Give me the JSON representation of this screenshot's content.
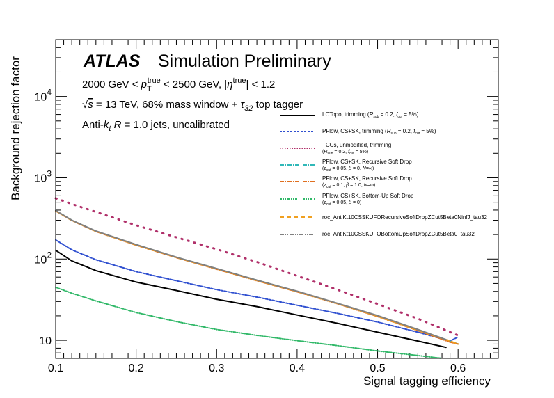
{
  "chart_data": {
    "type": "line",
    "xlabel": "Signal tagging efficiency",
    "ylabel": "Background rejection factor",
    "xlim": [
      0.1,
      0.65
    ],
    "ylim": [
      6,
      50000
    ],
    "yscale": "log",
    "grid": false,
    "legend_placement": "top-right",
    "x_ticks": [
      0.1,
      0.2,
      0.3,
      0.4,
      0.5,
      0.6
    ],
    "x_tick_labels": [
      "0.1",
      "0.2",
      "0.3",
      "0.4",
      "0.5",
      "0.6"
    ],
    "y_major_ticks": [
      10,
      100,
      1000,
      10000
    ],
    "y_tick_labels": [
      {
        "base": "10",
        "exp": ""
      },
      {
        "base": "10",
        "exp": "2"
      },
      {
        "base": "10",
        "exp": "3"
      },
      {
        "base": "10",
        "exp": "4"
      }
    ],
    "annotations": {
      "atlas": "ATLAS",
      "simulation": "Simulation Preliminary",
      "line1": "2000 GeV < p_T^true < 2500 GeV, |η^true| < 1.2",
      "line2": "√s = 13 TeV, 68% mass window + τ_32 top tagger",
      "line3": "Anti-k_t R = 1.0 jets, uncalibrated"
    },
    "series": [
      {
        "name": "LCTopo, trimming (R_sub = 0.2, f_cut = 5%)",
        "color": "#000000",
        "dash": "solid",
        "width": 2,
        "x": [
          0.1,
          0.12,
          0.15,
          0.2,
          0.25,
          0.3,
          0.35,
          0.4,
          0.45,
          0.5,
          0.55,
          0.585
        ],
        "y": [
          128,
          95,
          72,
          52,
          41,
          32,
          26,
          20.5,
          16.2,
          12.6,
          9.8,
          8.2
        ]
      },
      {
        "name": "PFlow, CS+SK, trimming (R_sub = 0.2, f_cut = 5%)",
        "color": "#3050d0",
        "dash": "3,2",
        "width": 2,
        "x": [
          0.1,
          0.12,
          0.15,
          0.2,
          0.25,
          0.3,
          0.35,
          0.4,
          0.45,
          0.5,
          0.55,
          0.59,
          0.6
        ],
        "y": [
          172,
          130,
          98,
          70,
          54,
          42,
          34,
          27,
          21.5,
          16.8,
          12.6,
          9.8,
          11
        ]
      },
      {
        "name": "TCCs, unmodified, trimming (R_sub = 0.2, f_cut = 5%)",
        "color": "#b0306a",
        "dash": "1.5,8",
        "width": 3,
        "x": [
          0.1,
          0.13,
          0.15,
          0.2,
          0.25,
          0.3,
          0.35,
          0.4,
          0.45,
          0.5,
          0.55,
          0.6
        ],
        "y": [
          560,
          440,
          380,
          260,
          185,
          132,
          92,
          62,
          42,
          28,
          18.5,
          11.5
        ]
      },
      {
        "name": "PFlow, CS+SK, Recursive Soft Drop (z_cut = 0.05, β = 0, N=∞)",
        "color": "#30b8b8",
        "dash": "6,2,1,2",
        "width": 2,
        "x": [
          0.1,
          0.12,
          0.15,
          0.2,
          0.25,
          0.3,
          0.35,
          0.4,
          0.45,
          0.5,
          0.55,
          0.585,
          0.6
        ],
        "y": [
          395,
          300,
          220,
          150,
          105,
          76,
          55,
          40,
          28.5,
          20,
          13.5,
          10.2,
          9
        ]
      },
      {
        "name": "PFlow, CS+SK, Recursive Soft Drop (z_cut = 0.1, β = 1.0, N=∞)",
        "color": "#e07020",
        "dash": "6,2,1,2",
        "width": 2,
        "x": [
          0.1,
          0.12,
          0.15,
          0.2,
          0.25,
          0.3,
          0.35,
          0.4,
          0.45,
          0.5,
          0.55,
          0.59,
          0.6
        ],
        "y": [
          390,
          298,
          218,
          148,
          104,
          75,
          54,
          39.5,
          28.2,
          19.6,
          13.2,
          9.5,
          9
        ]
      },
      {
        "name": "PFlow, CS+SK, Bottom-Up Soft Drop (z_cut = 0.05, β = 0)",
        "color": "#30b868",
        "dash": "3,2,1,2,1,2",
        "width": 2,
        "x": [
          0.1,
          0.12,
          0.15,
          0.2,
          0.25,
          0.3,
          0.35,
          0.4,
          0.45,
          0.5,
          0.55,
          0.58
        ],
        "y": [
          45,
          38,
          30.5,
          22,
          17,
          13.6,
          11.5,
          9.9,
          8.6,
          7.4,
          6.5,
          6
        ]
      },
      {
        "name": "roc_AntiKt10CSSKUFORecursiveSoftDropZCut5Beta0NinfJ_tau32",
        "color": "#f0a020",
        "dash": "6,4",
        "width": 2,
        "x": [
          0.1,
          0.12,
          0.15,
          0.2,
          0.25,
          0.3,
          0.35,
          0.4,
          0.45,
          0.5,
          0.55,
          0.59,
          0.6
        ],
        "y": [
          392,
          299,
          219,
          149,
          104.5,
          75.5,
          54.5,
          39.8,
          28.3,
          19.8,
          13.3,
          9.8,
          9
        ]
      },
      {
        "name": "roc_AntiKt10CSSKUFOBottomUpSoftDropZCut5Beta0_tau32",
        "color": "#808080",
        "dash": "solid",
        "width": 2,
        "x": [
          0.1,
          0.12,
          0.15,
          0.2,
          0.25,
          0.3,
          0.35,
          0.4,
          0.45,
          0.5,
          0.55,
          0.585
        ],
        "y": [
          396,
          301,
          221,
          151,
          105.5,
          76.5,
          55,
          40.2,
          28.6,
          20.2,
          13.6,
          10.2
        ]
      }
    ]
  }
}
